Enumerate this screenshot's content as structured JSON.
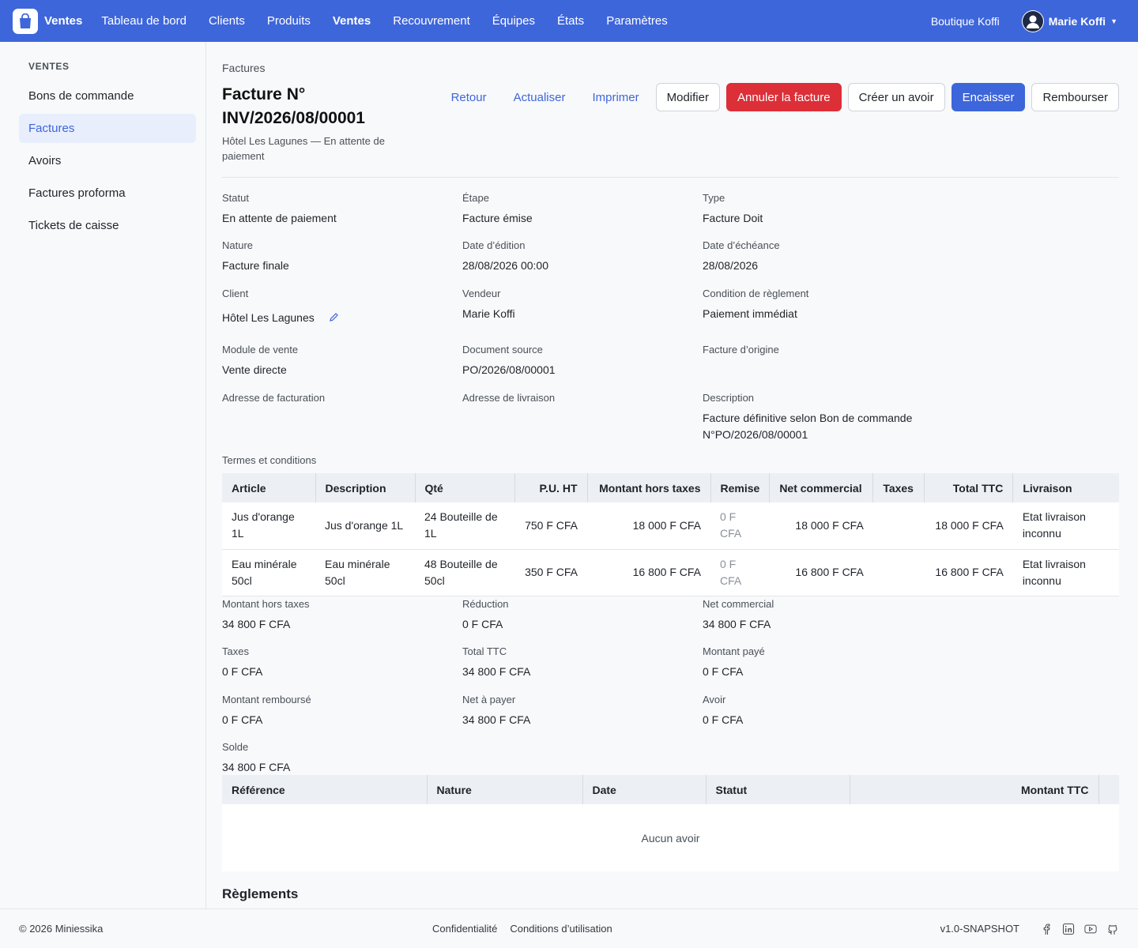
{
  "topnav": {
    "brand": "Ventes",
    "items": [
      "Tableau de bord",
      "Clients",
      "Produits",
      "Ventes",
      "Recouvrement",
      "Équipes",
      "États",
      "Paramètres"
    ],
    "shop": "Boutique Koffi",
    "user": "Marie Koffi",
    "accent": "#3e66db"
  },
  "sidebar": {
    "title": "VENTES",
    "items": [
      "Bons de commande",
      "Factures",
      "Avoirs",
      "Factures proforma",
      "Tickets de caisse"
    ]
  },
  "header": {
    "breadcrumb": "Factures",
    "title": "Facture N° INV/2026/08/00001",
    "subtitle": "Hôtel Les Lagunes — En attente de paiement",
    "actions": {
      "back": "Retour",
      "refresh": "Actualiser",
      "print": "Imprimer",
      "edit": "Modifier",
      "cancel": "Annuler la facture",
      "credit": "Créer un avoir",
      "collect": "Encaisser",
      "refund": "Rembourser"
    }
  },
  "fields": {
    "statut": {
      "label": "Statut",
      "value": "En attente de paiement"
    },
    "etape": {
      "label": "Étape",
      "value": "Facture émise"
    },
    "type": {
      "label": "Type",
      "value": "Facture Doit"
    },
    "nature": {
      "label": "Nature",
      "value": "Facture finale"
    },
    "date_edition": {
      "label": "Date d’édition",
      "value": "28/08/2026 00:00"
    },
    "date_echeance": {
      "label": "Date d’échéance",
      "value": "28/08/2026"
    },
    "client": {
      "label": "Client",
      "value": "Hôtel Les Lagunes"
    },
    "vendeur": {
      "label": "Vendeur",
      "value": "Marie Koffi"
    },
    "condition": {
      "label": "Condition de règlement",
      "value": "Paiement immédiat"
    },
    "module": {
      "label": "Module de vente",
      "value": "Vente directe"
    },
    "document_source": {
      "label": "Document source",
      "value": "PO/2026/08/00001"
    },
    "facture_origine": {
      "label": "Facture d’origine",
      "value": ""
    },
    "adresse_facturation": {
      "label": "Adresse de facturation",
      "value": ""
    },
    "adresse_livraison": {
      "label": "Adresse de livraison",
      "value": ""
    },
    "description": {
      "label": "Description",
      "value": "Facture définitive selon Bon de commande N°PO/2026/08/00001"
    }
  },
  "terms_label": "Termes et conditions",
  "lines": {
    "headers": [
      "Article",
      "Description",
      "Qté",
      "P.U. HT",
      "Montant hors taxes",
      "Remise",
      "Net commercial",
      "Taxes",
      "Total TTC",
      "Livraison"
    ],
    "rows": [
      [
        "Jus d'orange 1L",
        "Jus d'orange 1L",
        "24 Bouteille de 1L",
        "750 F CFA",
        "18 000 F CFA",
        "0 F CFA",
        "18 000 F CFA",
        "",
        "18 000 F CFA",
        "Etat livraison inconnu"
      ],
      [
        "Eau minérale 50cl",
        "Eau minérale 50cl",
        "48 Bouteille de 50cl",
        "350 F CFA",
        "16 800 F CFA",
        "0 F CFA",
        "16 800 F CFA",
        "",
        "16 800 F CFA",
        "Etat livraison inconnu"
      ]
    ]
  },
  "totals": {
    "ht": {
      "label": "Montant hors taxes",
      "value": "34 800 F CFA"
    },
    "reduction": {
      "label": "Réduction",
      "value": "0 F CFA"
    },
    "net": {
      "label": "Net commercial",
      "value": "34 800 F CFA"
    },
    "taxes": {
      "label": "Taxes",
      "value": "0 F CFA"
    },
    "ttc": {
      "label": "Total TTC",
      "value": "34 800 F CFA"
    },
    "paye": {
      "label": "Montant payé",
      "value": "0 F CFA"
    },
    "rembourse": {
      "label": "Montant remboursé",
      "value": "0 F CFA"
    },
    "net_payer": {
      "label": "Net à payer",
      "value": "34 800 F CFA"
    },
    "avoir": {
      "label": "Avoir",
      "value": "0 F CFA"
    },
    "solde": {
      "label": "Solde",
      "value": "34 800 F CFA"
    }
  },
  "avoirs": {
    "headers": [
      "Référence",
      "Nature",
      "Date",
      "Statut",
      "Montant TTC"
    ],
    "empty": "Aucun avoir"
  },
  "reglements_title": "Règlements",
  "footer": {
    "copyright": "© 2026 Miniessika",
    "links": [
      "Confidentialité",
      "Conditions d’utilisation"
    ],
    "version": "v1.0-SNAPSHOT",
    "social_icons": [
      "facebook-icon",
      "linkedin-icon",
      "youtube-icon",
      "github-icon"
    ]
  }
}
